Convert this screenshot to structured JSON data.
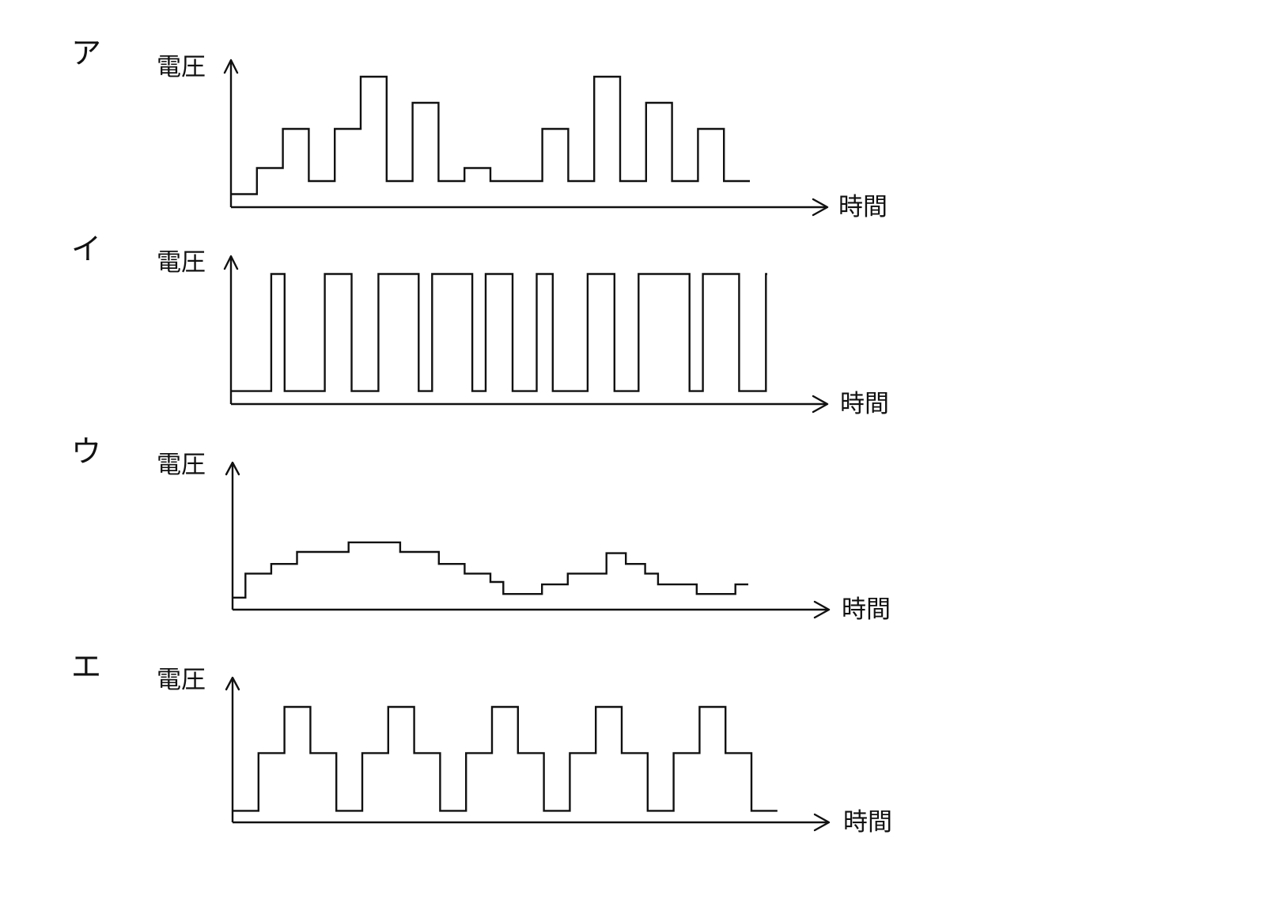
{
  "panels": [
    {
      "id": "a",
      "label": "ア",
      "ylabel": "電圧",
      "xlabel": "時間",
      "signal": [
        [
          0,
          1
        ],
        [
          2,
          3
        ],
        [
          4,
          6
        ],
        [
          6,
          2
        ],
        [
          8,
          6
        ],
        [
          10,
          10
        ],
        [
          12,
          2
        ],
        [
          14,
          8
        ],
        [
          16,
          2
        ],
        [
          18,
          3
        ],
        [
          20,
          2
        ],
        [
          22,
          2
        ],
        [
          24,
          6
        ],
        [
          26,
          2
        ],
        [
          28,
          10
        ],
        [
          30,
          2
        ],
        [
          32,
          8
        ],
        [
          34,
          2
        ],
        [
          36,
          6
        ],
        [
          38,
          2
        ],
        [
          40,
          2
        ]
      ]
    },
    {
      "id": "i",
      "label": "イ",
      "ylabel": "電圧",
      "xlabel": "時間",
      "signal": [
        [
          0,
          1
        ],
        [
          3.0,
          10
        ],
        [
          4.0,
          1
        ],
        [
          7.0,
          10
        ],
        [
          9.0,
          1
        ],
        [
          11.0,
          10
        ],
        [
          14.0,
          1
        ],
        [
          15.0,
          10
        ],
        [
          18.0,
          1
        ],
        [
          19.0,
          10
        ],
        [
          21.0,
          1
        ],
        [
          22.8,
          10
        ],
        [
          24.0,
          1
        ],
        [
          26.6,
          10
        ],
        [
          28.6,
          1
        ],
        [
          30.4,
          10
        ],
        [
          34.2,
          1
        ],
        [
          35.2,
          10
        ],
        [
          37.9,
          1
        ],
        [
          39.9,
          10
        ],
        [
          40.0,
          10
        ]
      ]
    },
    {
      "id": "u",
      "label": "ウ",
      "ylabel": "電圧",
      "xlabel": "時間",
      "signal": [
        [
          0,
          1
        ],
        [
          1,
          3
        ],
        [
          3,
          3.8
        ],
        [
          5,
          4.8
        ],
        [
          9,
          5.6
        ],
        [
          13,
          4.8
        ],
        [
          16,
          3.8
        ],
        [
          18,
          3
        ],
        [
          20,
          2.3
        ],
        [
          21,
          1.3
        ],
        [
          24,
          2.1
        ],
        [
          26,
          3
        ],
        [
          29,
          4.7
        ],
        [
          30.5,
          3.8
        ],
        [
          32,
          3
        ],
        [
          33,
          2.1
        ],
        [
          36,
          1.3
        ],
        [
          39,
          2.1
        ],
        [
          40,
          2.1
        ]
      ]
    },
    {
      "id": "e",
      "label": "エ",
      "ylabel": "電圧",
      "xlabel": "時間",
      "signal": [
        [
          0,
          1
        ],
        [
          2,
          6
        ],
        [
          4,
          10
        ],
        [
          6,
          6
        ],
        [
          8,
          1
        ],
        [
          10,
          6
        ],
        [
          12,
          10
        ],
        [
          14,
          6
        ],
        [
          16,
          1
        ],
        [
          18,
          6
        ],
        [
          20,
          10
        ],
        [
          22,
          6
        ],
        [
          24,
          1
        ],
        [
          26,
          6
        ],
        [
          28,
          10
        ],
        [
          30,
          6
        ],
        [
          32,
          1
        ],
        [
          34,
          6
        ],
        [
          36,
          10
        ],
        [
          38,
          6
        ],
        [
          40,
          1
        ],
        [
          42,
          1
        ]
      ]
    }
  ]
}
